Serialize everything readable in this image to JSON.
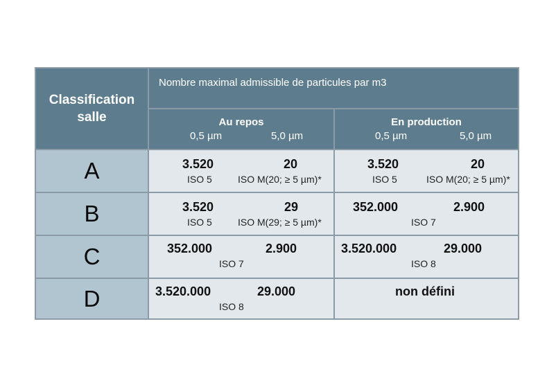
{
  "header": {
    "classification_line1": "Classification",
    "classification_line2": "salle",
    "nombre_title": "Nombre maximal admissible de particules par m3",
    "groups": [
      {
        "label": "Au repos",
        "unit1": "0,5 µm",
        "unit2": "5,0 µm"
      },
      {
        "label": "En production",
        "unit1": "0,5 µm",
        "unit2": "5,0 µm"
      }
    ]
  },
  "rows": [
    {
      "class": "A",
      "repos": {
        "v1": "3.520",
        "v2": "20",
        "iso1": "ISO 5",
        "iso2": "ISO M(20; ≥ 5 µm)*"
      },
      "production": {
        "v1": "3.520",
        "v2": "20",
        "iso1": "ISO 5",
        "iso2": "ISO M(20; ≥ 5 µm)*"
      }
    },
    {
      "class": "B",
      "repos": {
        "v1": "3.520",
        "v2": "29",
        "iso1": "ISO 5",
        "iso2": "ISO M(29; ≥ 5 µm)*"
      },
      "production": {
        "v1": "352.000",
        "v2": "2.900",
        "iso": "ISO 7"
      }
    },
    {
      "class": "C",
      "repos": {
        "v1": "352.000",
        "v2": "2.900",
        "iso": "ISO 7"
      },
      "production": {
        "v1": "3.520.000",
        "v2": "29.000",
        "iso": "ISO 8"
      }
    },
    {
      "class": "D",
      "repos": {
        "v1": "3.520.000",
        "v2": "29.000",
        "iso": "ISO 8"
      },
      "production": {
        "text": "non défini"
      }
    }
  ]
}
